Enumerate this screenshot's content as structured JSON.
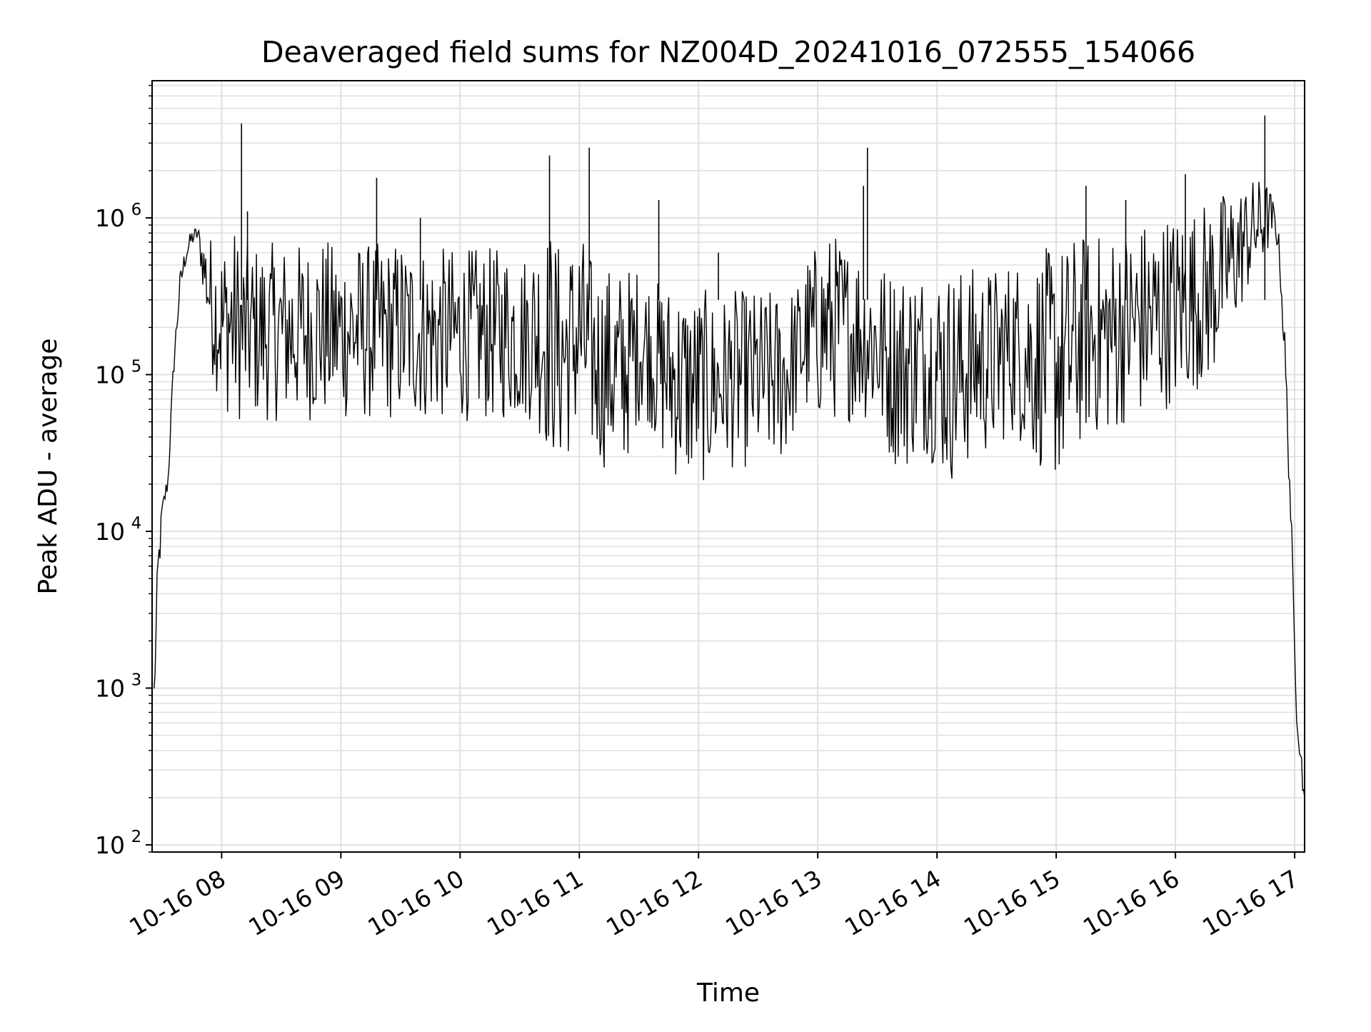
{
  "chart_data": {
    "type": "line",
    "title": "Deaveraged field sums for NZ004D_20241016_072555_154066",
    "xlabel": "Time",
    "ylabel": "Peak ADU - average",
    "yscale": "log",
    "ylim": [
      90,
      7500000
    ],
    "xlim": [
      "2024-10-16 07:25:55",
      "2024-10-17 17:05:00"
    ],
    "grid": true,
    "grid_minor": true,
    "line_color": "#000000",
    "grid_color": "#e0e0e0",
    "x_ticks": [
      {
        "label": "10-16 08",
        "value": "2024-10-16 08:00"
      },
      {
        "label": "10-16 09",
        "value": "2024-10-16 09:00"
      },
      {
        "label": "10-16 10",
        "value": "2024-10-16 10:00"
      },
      {
        "label": "10-16 11",
        "value": "2024-10-16 11:00"
      },
      {
        "label": "10-16 12",
        "value": "2024-10-16 12:00"
      },
      {
        "label": "10-16 13",
        "value": "2024-10-16 13:00"
      },
      {
        "label": "10-16 14",
        "value": "2024-10-16 14:00"
      },
      {
        "label": "10-16 15",
        "value": "2024-10-16 15:00"
      },
      {
        "label": "10-16 16",
        "value": "2024-10-16 16:00"
      },
      {
        "label": "10-16 17",
        "value": "2024-10-16 17:00"
      }
    ],
    "y_ticks": [
      {
        "base": "10",
        "exp": "2",
        "value": 100
      },
      {
        "base": "10",
        "exp": "3",
        "value": 1000
      },
      {
        "base": "10",
        "exp": "4",
        "value": 10000
      },
      {
        "base": "10",
        "exp": "5",
        "value": 100000
      },
      {
        "base": "10",
        "exp": "6",
        "value": 1000000
      }
    ],
    "series": [
      {
        "x": [
          "07:26",
          "07:28",
          "07:30",
          "07:33",
          "07:36",
          "07:39",
          "07:42",
          "07:45",
          "07:48",
          "07:50",
          "07:55",
          "08:00",
          "08:06",
          "08:10",
          "08:15",
          "08:20",
          "08:25",
          "08:30",
          "08:35",
          "08:40",
          "08:45",
          "08:50",
          "08:55",
          "09:00",
          "09:05",
          "09:10",
          "09:15",
          "09:20",
          "09:25",
          "09:30",
          "09:35",
          "09:40",
          "09:45",
          "09:50",
          "09:55",
          "10:00",
          "10:05",
          "10:10",
          "10:15",
          "10:20",
          "10:25",
          "10:30",
          "10:35",
          "10:40",
          "10:45",
          "10:50",
          "10:55",
          "11:00",
          "11:05",
          "11:10",
          "11:15",
          "11:20",
          "11:25",
          "11:30",
          "11:35",
          "11:40",
          "11:45",
          "11:50",
          "11:55",
          "12:00",
          "12:05",
          "12:10",
          "12:15",
          "12:20",
          "12:25",
          "12:30",
          "12:35",
          "12:40",
          "12:45",
          "12:50",
          "12:55",
          "13:00",
          "13:05",
          "13:10",
          "13:15",
          "13:20",
          "13:25",
          "13:30",
          "13:35",
          "13:40",
          "13:45",
          "13:50",
          "13:55",
          "14:00",
          "14:05",
          "14:10",
          "14:15",
          "14:20",
          "14:25",
          "14:30",
          "14:35",
          "14:40",
          "14:45",
          "14:50",
          "14:55",
          "15:00",
          "15:05",
          "15:10",
          "15:15",
          "15:20",
          "15:25",
          "15:30",
          "15:35",
          "15:40",
          "15:45",
          "15:50",
          "15:55",
          "16:00",
          "16:05",
          "16:10",
          "16:15",
          "16:20",
          "16:25",
          "16:30",
          "16:35",
          "16:40",
          "16:45",
          "16:48",
          "16:50",
          "16:52",
          "16:55",
          "16:58",
          "17:00",
          "17:01",
          "17:03",
          "17:05"
        ],
        "lo": [
          700,
          3000,
          12000,
          18000,
          100000,
          300000,
          500000,
          650000,
          700000,
          400000,
          100000,
          60000,
          50000,
          50000,
          50000,
          50000,
          50000,
          50000,
          50000,
          50000,
          50000,
          50000,
          50000,
          50000,
          50000,
          50000,
          50000,
          50000,
          50000,
          50000,
          50000,
          50000,
          50000,
          50000,
          50000,
          50000,
          50000,
          50000,
          50000,
          50000,
          50000,
          50000,
          50000,
          40000,
          30000,
          25000,
          30000,
          40000,
          30000,
          25000,
          25000,
          20000,
          30000,
          50000,
          50000,
          30000,
          25000,
          20000,
          20000,
          20000,
          20000,
          25000,
          25000,
          25000,
          25000,
          25000,
          25000,
          25000,
          30000,
          50000,
          50000,
          50000,
          50000,
          50000,
          50000,
          50000,
          50000,
          40000,
          30000,
          25000,
          25000,
          30000,
          30000,
          25000,
          20000,
          20000,
          25000,
          30000,
          30000,
          30000,
          40000,
          40000,
          30000,
          25000,
          25000,
          20000,
          20000,
          30000,
          40000,
          40000,
          40000,
          40000,
          50000,
          50000,
          50000,
          50000,
          60000,
          60000,
          70000,
          80000,
          80000,
          100000,
          150000,
          200000,
          300000,
          400000,
          500000,
          700000,
          700000,
          600000,
          100000,
          10000,
          1500,
          600,
          300,
          150
        ],
        "hi": [
          1200,
          9000,
          15000,
          25000,
          150000,
          450000,
          700000,
          850000,
          900000,
          800000,
          800000,
          750000,
          900000,
          700000,
          700000,
          700000,
          700000,
          700000,
          700000,
          700000,
          700000,
          800000,
          700000,
          700000,
          750000,
          700000,
          700000,
          700000,
          700000,
          750000,
          700000,
          700000,
          650000,
          650000,
          650000,
          650000,
          650000,
          650000,
          650000,
          650000,
          700000,
          600000,
          650000,
          900000,
          900000,
          700000,
          700000,
          900000,
          600000,
          500000,
          500000,
          500000,
          500000,
          500000,
          450000,
          400000,
          400000,
          400000,
          350000,
          350000,
          350000,
          300000,
          350000,
          350000,
          350000,
          350000,
          350000,
          350000,
          350000,
          400000,
          600000,
          700000,
          800000,
          800000,
          700000,
          700000,
          600000,
          600000,
          500000,
          500000,
          500000,
          500000,
          500000,
          500000,
          500000,
          500000,
          500000,
          500000,
          500000,
          500000,
          550000,
          550000,
          600000,
          600000,
          650000,
          700000,
          700000,
          800000,
          800000,
          800000,
          800000,
          850000,
          900000,
          900000,
          1000000,
          1000000,
          1100000,
          1100000,
          1200000,
          1200000,
          1300000,
          1400000,
          1500000,
          1600000,
          1700000,
          1800000,
          1800000,
          1500000,
          1200000,
          800000,
          200000,
          20000,
          2000,
          900,
          500,
          200
        ]
      }
    ],
    "spikes": [
      {
        "x": "08:10",
        "y": 4000000
      },
      {
        "x": "08:13",
        "y": 1100000
      },
      {
        "x": "09:18",
        "y": 1800000
      },
      {
        "x": "09:40",
        "y": 1000000
      },
      {
        "x": "10:45",
        "y": 2500000
      },
      {
        "x": "11:05",
        "y": 2800000
      },
      {
        "x": "11:40",
        "y": 1300000
      },
      {
        "x": "12:10",
        "y": 600000
      },
      {
        "x": "13:25",
        "y": 2800000
      },
      {
        "x": "13:23",
        "y": 1600000
      },
      {
        "x": "15:15",
        "y": 1600000
      },
      {
        "x": "15:35",
        "y": 1300000
      },
      {
        "x": "16:05",
        "y": 1900000
      },
      {
        "x": "16:45",
        "y": 4500000
      }
    ]
  }
}
